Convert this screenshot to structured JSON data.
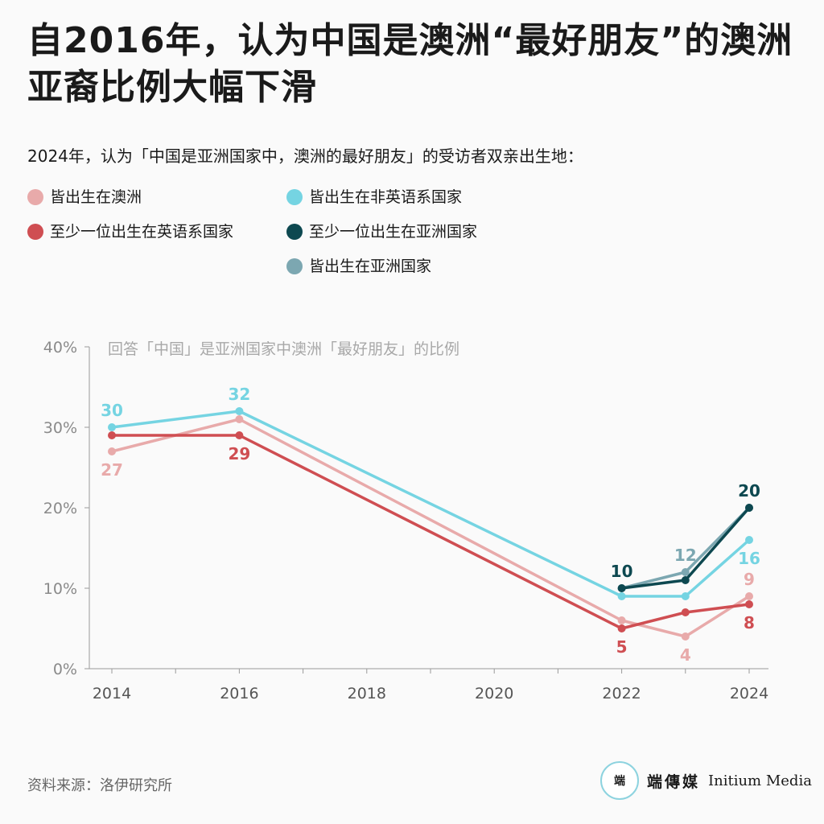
{
  "header": {
    "title": "自2016年，认为中国是澳洲“最好朋友”的澳洲亚裔比例大幅下滑",
    "subtitle": "2024年，认为「中国是亚洲国家中，澳洲的最好朋友」的受访者双亲出生地："
  },
  "legend": [
    {
      "label": "皆出生在澳洲",
      "color": "#e8aaaa"
    },
    {
      "label": "皆出生在非英语系国家",
      "color": "#75d4e2"
    },
    {
      "label": "至少一位出生在英语系国家",
      "color": "#cf4e52"
    },
    {
      "label": "至少一位出生在亚洲国家",
      "color": "#0d4850"
    },
    {
      "label": "皆出生在亚洲国家",
      "color": "#7ca7b1"
    }
  ],
  "chart_data": {
    "type": "line",
    "title": "回答「中国」是亚洲国家中澳洲「最好朋友」的比例",
    "x_ticks": [
      2014,
      2016,
      2018,
      2020,
      2022,
      2024
    ],
    "xlim": [
      2014,
      2024
    ],
    "ylim": [
      0,
      40
    ],
    "y_ticks": [
      "0%",
      "10%",
      "20%",
      "30%",
      "40%"
    ],
    "y_tick_values": [
      0,
      10,
      20,
      30,
      40
    ],
    "grid": false,
    "series": [
      {
        "name": "皆出生在澳洲",
        "color": "#e8aaaa",
        "x": [
          2014,
          2016,
          2022,
          2023,
          2024
        ],
        "y": [
          27,
          31,
          6,
          4,
          9
        ],
        "labels": [
          {
            "index": 0,
            "text": "27",
            "pos": "below"
          },
          {
            "index": 3,
            "text": "4",
            "pos": "below"
          },
          {
            "index": 4,
            "text": "9",
            "pos": "above"
          }
        ]
      },
      {
        "name": "至少一位出生在英语系国家",
        "color": "#cf4e52",
        "x": [
          2014,
          2016,
          2022,
          2023,
          2024
        ],
        "y": [
          29,
          29,
          5,
          7,
          8
        ],
        "labels": [
          {
            "index": 1,
            "text": "29",
            "pos": "below"
          },
          {
            "index": 2,
            "text": "5",
            "pos": "below"
          },
          {
            "index": 4,
            "text": "8",
            "pos": "below"
          }
        ]
      },
      {
        "name": "皆出生在非英语系国家",
        "color": "#75d4e2",
        "x": [
          2014,
          2016,
          2022,
          2023,
          2024
        ],
        "y": [
          30,
          32,
          9,
          9,
          16
        ],
        "labels": [
          {
            "index": 0,
            "text": "30",
            "pos": "above"
          },
          {
            "index": 1,
            "text": "32",
            "pos": "above"
          },
          {
            "index": 4,
            "text": "16",
            "pos": "below"
          }
        ]
      },
      {
        "name": "皆出生在亚洲国家",
        "color": "#7ca7b1",
        "x": [
          2022,
          2023,
          2024
        ],
        "y": [
          10,
          12,
          20
        ],
        "labels": [
          {
            "index": 1,
            "text": "12",
            "pos": "above"
          }
        ]
      },
      {
        "name": "至少一位出生在亚洲国家",
        "color": "#0d4850",
        "x": [
          2022,
          2023,
          2024
        ],
        "y": [
          10,
          11,
          20
        ],
        "labels": [
          {
            "index": 0,
            "text": "10",
            "pos": "above"
          },
          {
            "index": 2,
            "text": "20",
            "pos": "above"
          }
        ]
      }
    ]
  },
  "footer": {
    "source": "资料来源：洛伊研究所",
    "brand_logo_text": "端",
    "brand_cn": "端傳媒",
    "brand_en": "Initium Media"
  }
}
